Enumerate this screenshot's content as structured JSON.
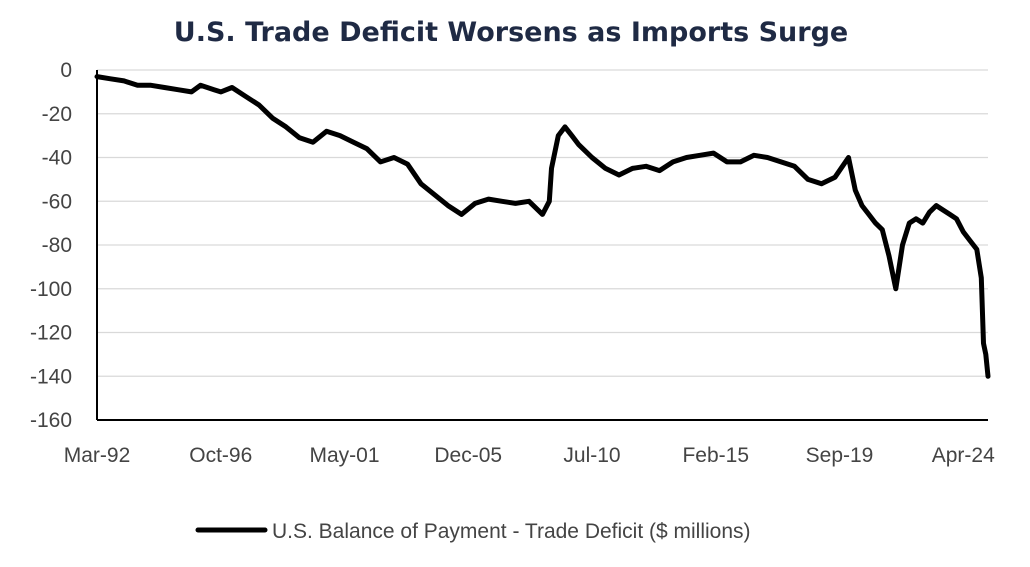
{
  "chart_data": {
    "type": "line",
    "title": "U.S. Trade Deficit Worsens as Imports Surge",
    "xlabel": "",
    "ylabel": "",
    "ylim": [
      -160,
      0
    ],
    "yticks": [
      0,
      -20,
      -40,
      -60,
      -80,
      -100,
      -120,
      -140,
      -160
    ],
    "xlim": [
      "1992-03",
      "2025-03"
    ],
    "xticks": [
      {
        "label": "Mar-92",
        "date": "1992-03"
      },
      {
        "label": "Oct-96",
        "date": "1996-10"
      },
      {
        "label": "May-01",
        "date": "2001-05"
      },
      {
        "label": "Dec-05",
        "date": "2005-12"
      },
      {
        "label": "Jul-10",
        "date": "2010-07"
      },
      {
        "label": "Feb-15",
        "date": "2015-02"
      },
      {
        "label": "Sep-19",
        "date": "2019-09"
      },
      {
        "label": "Apr-24",
        "date": "2024-04"
      }
    ],
    "grid": true,
    "legend_position": "bottom",
    "series": [
      {
        "name": "U.S. Balance of Payment - Trade Deficit ($ millions)",
        "color": "#000000",
        "x": [
          "1992-03",
          "1992-09",
          "1993-03",
          "1993-09",
          "1994-03",
          "1994-09",
          "1995-03",
          "1995-09",
          "1996-01",
          "1996-04",
          "1996-07",
          "1996-10",
          "1997-03",
          "1997-09",
          "1998-03",
          "1998-09",
          "1999-03",
          "1999-09",
          "2000-03",
          "2000-09",
          "2001-03",
          "2001-09",
          "2002-03",
          "2002-09",
          "2003-03",
          "2003-09",
          "2004-03",
          "2004-09",
          "2005-03",
          "2005-09",
          "2006-03",
          "2006-09",
          "2007-03",
          "2007-09",
          "2008-03",
          "2008-09",
          "2008-12",
          "2009-01",
          "2009-04",
          "2009-07",
          "2009-10",
          "2010-01",
          "2010-07",
          "2011-01",
          "2011-07",
          "2012-01",
          "2012-07",
          "2013-01",
          "2013-07",
          "2014-01",
          "2014-07",
          "2015-01",
          "2015-07",
          "2016-01",
          "2016-07",
          "2017-01",
          "2017-07",
          "2018-01",
          "2018-07",
          "2019-01",
          "2019-07",
          "2020-01",
          "2020-04",
          "2020-07",
          "2020-10",
          "2021-01",
          "2021-04",
          "2021-07",
          "2021-10",
          "2022-01",
          "2022-04",
          "2022-07",
          "2022-10",
          "2023-01",
          "2023-04",
          "2023-07",
          "2023-10",
          "2024-01",
          "2024-04",
          "2024-07",
          "2024-10",
          "2024-12",
          "2025-01",
          "2025-02",
          "2025-03"
        ],
        "values": [
          -3,
          -4,
          -5,
          -7,
          -7,
          -8,
          -9,
          -10,
          -7,
          -8,
          -9,
          -10,
          -8,
          -12,
          -16,
          -22,
          -26,
          -31,
          -33,
          -28,
          -30,
          -33,
          -36,
          -42,
          -40,
          -43,
          -52,
          -57,
          -62,
          -66,
          -61,
          -59,
          -60,
          -61,
          -60,
          -66,
          -60,
          -45,
          -30,
          -26,
          -30,
          -34,
          -40,
          -45,
          -48,
          -45,
          -44,
          -46,
          -42,
          -40,
          -39,
          -38,
          -42,
          -42,
          -39,
          -40,
          -42,
          -44,
          -50,
          -52,
          -49,
          -40,
          -55,
          -62,
          -66,
          -70,
          -73,
          -85,
          -100,
          -80,
          -70,
          -68,
          -70,
          -65,
          -62,
          -64,
          -66,
          -68,
          -74,
          -78,
          -82,
          -95,
          -125,
          -130,
          -140
        ]
      }
    ]
  }
}
